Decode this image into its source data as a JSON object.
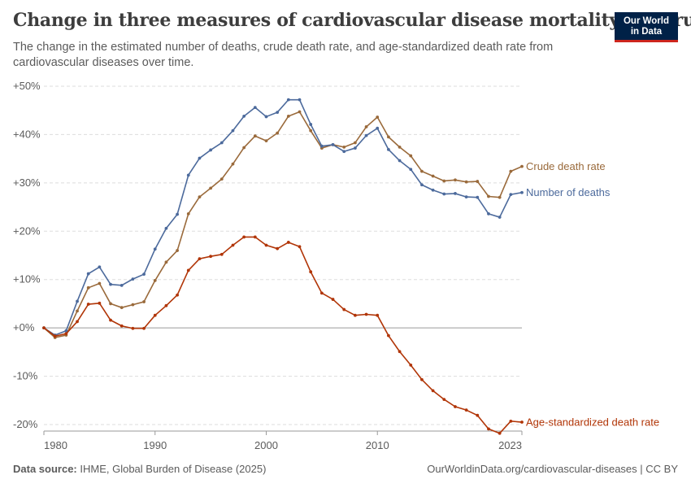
{
  "header": {
    "title": "Change in three measures of cardiovascular disease mortality, Belarus",
    "subtitle": "The change in the estimated number of deaths, crude death rate, and age-standardized death rate from cardiovascular diseases over time.",
    "logo_line1": "Our World",
    "logo_line2": "in Data"
  },
  "footer": {
    "source_label": "Data source:",
    "source_text": "IHME, Global Burden of Disease (2025)",
    "url_text": "OurWorldinData.org/cardiovascular-diseases | CC BY"
  },
  "chart_data": {
    "type": "line",
    "title": "Change in three measures of cardiovascular disease mortality, Belarus",
    "xlabel": "",
    "ylabel": "",
    "xlim": [
      1980,
      2023
    ],
    "ylim": [
      -20,
      50
    ],
    "y_ticks": [
      -20,
      -10,
      0,
      10,
      20,
      30,
      40,
      50
    ],
    "y_tick_labels": [
      "-20%",
      "-10%",
      "+0%",
      "+10%",
      "+20%",
      "+30%",
      "+40%",
      "+50%"
    ],
    "x_ticks": [
      1980,
      1990,
      2000,
      2010,
      2023
    ],
    "x_tick_labels": [
      "1980",
      "1990",
      "2000",
      "2010",
      "2023"
    ],
    "grid": "horizontal dashed",
    "legend": "inline labels at right end of lines",
    "x": [
      1980,
      1981,
      1982,
      1983,
      1984,
      1985,
      1986,
      1987,
      1988,
      1989,
      1990,
      1991,
      1992,
      1993,
      1994,
      1995,
      1996,
      1997,
      1998,
      1999,
      2000,
      2001,
      2002,
      2003,
      2004,
      2005,
      2006,
      2007,
      2008,
      2009,
      2010,
      2011,
      2012,
      2013,
      2014,
      2015,
      2016,
      2017,
      2018,
      2019,
      2020,
      2021,
      2022,
      2023
    ],
    "series": [
      {
        "name": "Crude death rate",
        "color": "#9a6a3b",
        "values": [
          0,
          -2.0,
          -1.5,
          3.5,
          8.3,
          9.2,
          5.0,
          4.2,
          4.8,
          5.4,
          9.8,
          13.6,
          16.0,
          23.6,
          27.1,
          28.9,
          30.8,
          33.9,
          37.3,
          39.7,
          38.7,
          40.3,
          43.8,
          44.7,
          40.8,
          37.2,
          37.9,
          37.4,
          38.3,
          41.6,
          43.6,
          39.5,
          37.4,
          35.6,
          32.4,
          31.4,
          30.4,
          30.6,
          30.2,
          30.3,
          27.2,
          27.0,
          32.4,
          33.4
        ]
      },
      {
        "name": "Number of deaths",
        "color": "#4c6a9c",
        "values": [
          0,
          -1.5,
          -0.6,
          5.5,
          11.2,
          12.6,
          9.0,
          8.8,
          10.1,
          11.1,
          16.3,
          20.6,
          23.5,
          31.6,
          35.1,
          36.8,
          38.3,
          40.8,
          43.8,
          45.6,
          43.7,
          44.6,
          47.2,
          47.2,
          42.1,
          37.6,
          37.9,
          36.5,
          37.2,
          39.8,
          41.3,
          36.9,
          34.6,
          32.8,
          29.6,
          28.5,
          27.7,
          27.8,
          27.1,
          27.0,
          23.6,
          22.9,
          27.6,
          28.0
        ]
      },
      {
        "name": "Age-standardized death rate",
        "color": "#b13507",
        "values": [
          0,
          -1.7,
          -1.2,
          1.3,
          4.9,
          5.1,
          1.6,
          0.4,
          -0.1,
          -0.1,
          2.6,
          4.6,
          6.8,
          11.9,
          14.3,
          14.8,
          15.2,
          17.1,
          18.8,
          18.8,
          17.1,
          16.4,
          17.7,
          16.8,
          11.6,
          7.2,
          5.9,
          3.8,
          2.6,
          2.8,
          2.6,
          -1.6,
          -4.9,
          -7.7,
          -10.7,
          -13.0,
          -14.8,
          -16.3,
          -17.0,
          -18.1,
          -20.9,
          -21.8,
          -19.3,
          -19.5
        ]
      }
    ]
  }
}
